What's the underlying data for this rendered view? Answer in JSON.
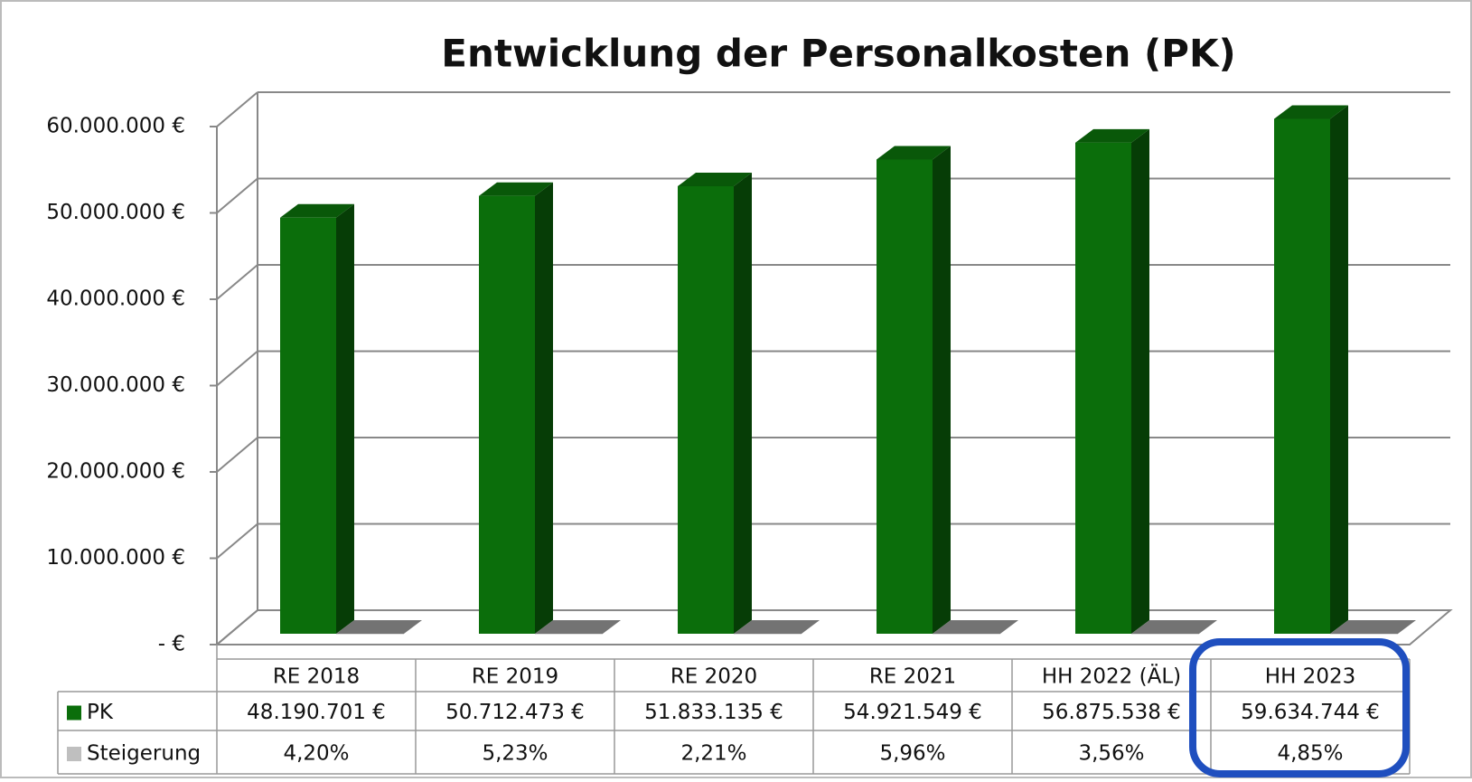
{
  "chart_data": {
    "type": "bar",
    "title": "Entwicklung der Personalkosten (PK)",
    "categories": [
      "RE 2018",
      "RE 2019",
      "RE 2020",
      "RE 2021",
      "HH 2022 (ÄL)",
      "HH 2023"
    ],
    "series": [
      {
        "name": "PK",
        "color": "#0b6e0b",
        "values": [
          48190701,
          50712473,
          51833135,
          54921549,
          56875538,
          59634744
        ],
        "value_labels": [
          "48.190.701 €",
          "50.712.473 €",
          "51.833.135 €",
          "54.921.549 €",
          "56.875.538 €",
          "59.634.744 €"
        ]
      },
      {
        "name": "Steigerung",
        "color": "#bfbfbf",
        "values": [
          4.2,
          5.23,
          2.21,
          5.96,
          3.56,
          4.85
        ],
        "value_labels": [
          "4,20%",
          "5,23%",
          "2,21%",
          "5,96%",
          "3,56%",
          "4,85%"
        ]
      }
    ],
    "ylim": [
      0,
      60000000
    ],
    "yticks": [
      {
        "value": 0,
        "label": "-  €"
      },
      {
        "value": 10000000,
        "label": "10.000.000 €"
      },
      {
        "value": 20000000,
        "label": "20.000.000 €"
      },
      {
        "value": 30000000,
        "label": "30.000.000 €"
      },
      {
        "value": 40000000,
        "label": "40.000.000 €"
      },
      {
        "value": 50000000,
        "label": "50.000.000 €"
      },
      {
        "value": 60000000,
        "label": "60.000.000 €"
      }
    ],
    "grid": true
  }
}
